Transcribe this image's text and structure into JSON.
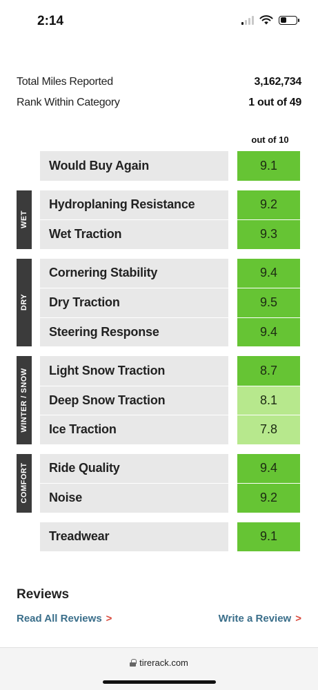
{
  "status_bar": {
    "time": "2:14"
  },
  "summary": [
    {
      "label": "Total Miles Reported",
      "value": "3,162,734"
    },
    {
      "label": "Rank Within Category",
      "value": "1 out of 49"
    }
  ],
  "ratings_header": "out of 10",
  "groups": [
    {
      "tag": "",
      "rows": [
        {
          "label": "Would Buy Again",
          "score": "9.1"
        }
      ]
    },
    {
      "tag": "WET",
      "rows": [
        {
          "label": "Hydroplaning Resistance",
          "score": "9.2"
        },
        {
          "label": "Wet Traction",
          "score": "9.3"
        }
      ]
    },
    {
      "tag": "DRY",
      "rows": [
        {
          "label": "Cornering Stability",
          "score": "9.4"
        },
        {
          "label": "Dry Traction",
          "score": "9.5"
        },
        {
          "label": "Steering Response",
          "score": "9.4"
        }
      ]
    },
    {
      "tag": "WINTER / SNOW",
      "rows": [
        {
          "label": "Light Snow Traction",
          "score": "8.7"
        },
        {
          "label": "Deep Snow Traction",
          "score": "8.1",
          "tone": "light"
        },
        {
          "label": "Ice Traction",
          "score": "7.8",
          "tone": "light"
        }
      ]
    },
    {
      "tag": "COMFORT",
      "rows": [
        {
          "label": "Ride Quality",
          "score": "9.4"
        },
        {
          "label": "Noise",
          "score": "9.2"
        }
      ]
    },
    {
      "tag": "",
      "rows": [
        {
          "label": "Treadwear",
          "score": "9.1"
        }
      ]
    }
  ],
  "reviews": {
    "title": "Reviews",
    "read_all": "Read All Reviews",
    "write": "Write a Review",
    "chevron": ">"
  },
  "browser": {
    "url": "tirerack.com"
  },
  "colors": {
    "score_high": "#66c434",
    "score_mid": "#b7e88d",
    "group_tag": "#3b3b3b",
    "link": "#3a6e8a",
    "chevron": "#d9483b"
  }
}
